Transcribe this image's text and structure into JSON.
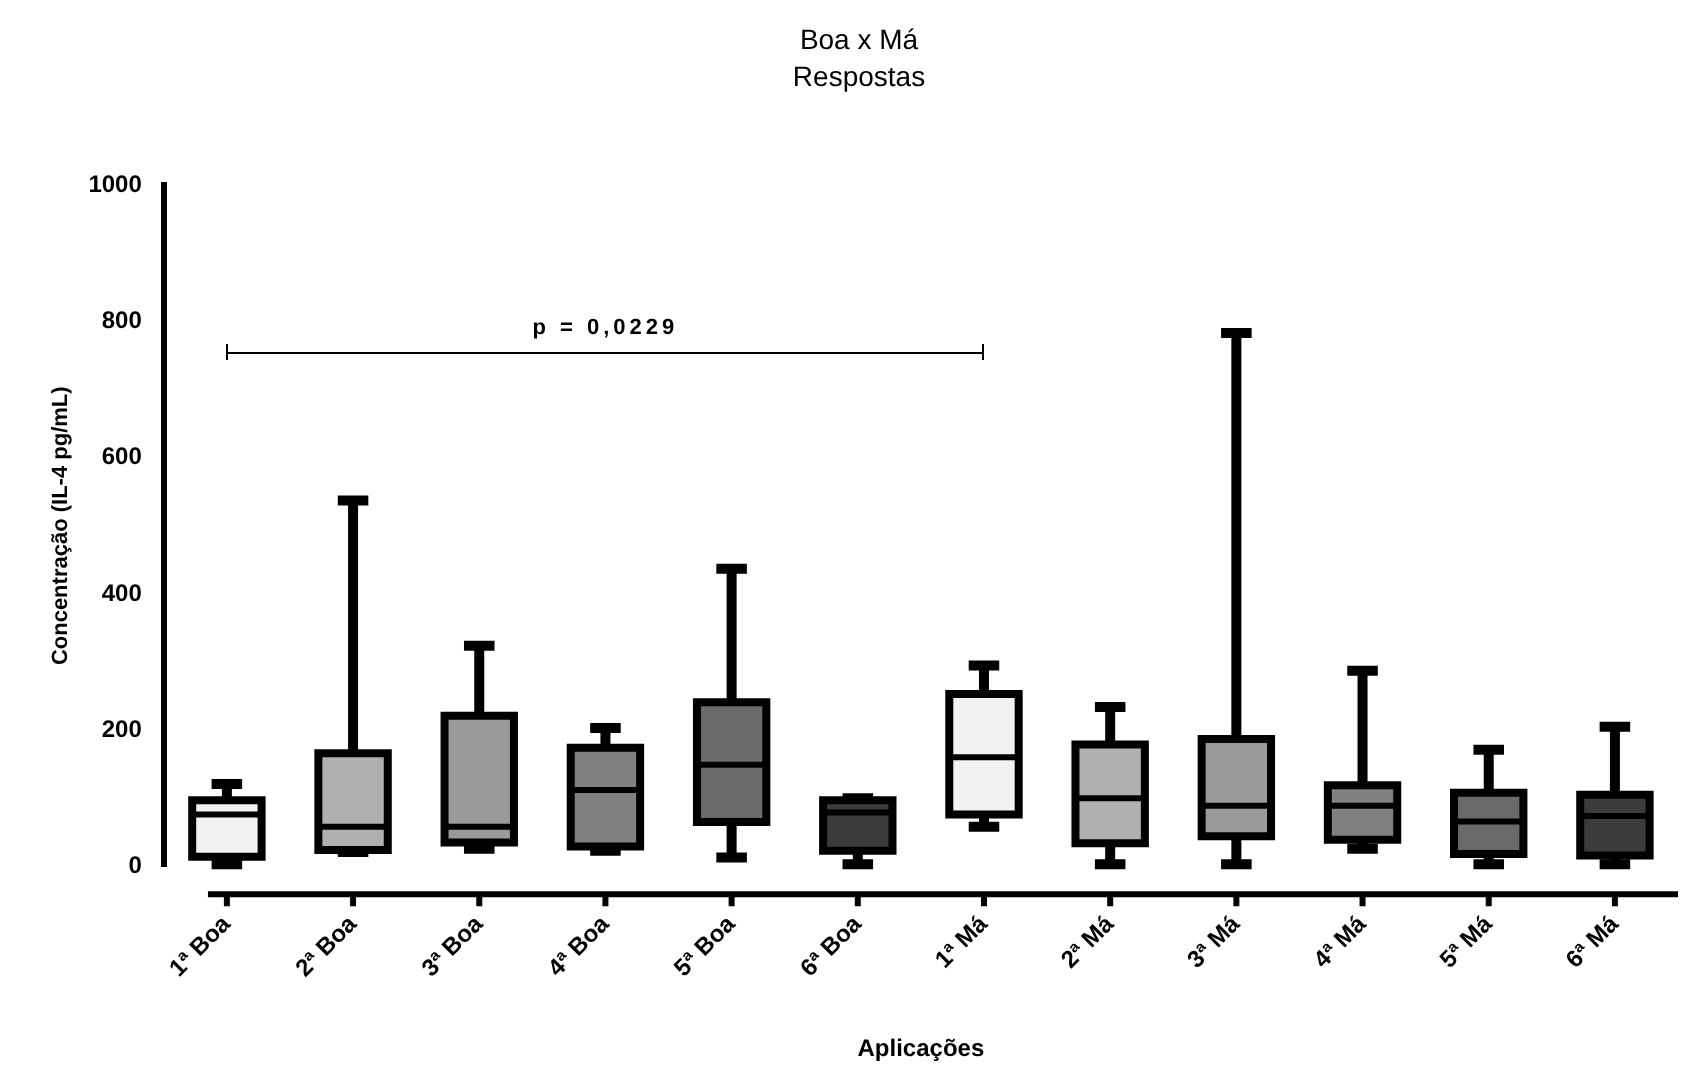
{
  "chart_data": {
    "type": "box",
    "title": "Boa x Má",
    "subtitle": "Respostas",
    "xlabel": "Aplicações",
    "ylabel": "Concentração (IL-4 pg/mL)",
    "categories": [
      "1ª Boa",
      "2ª Boa",
      "3ª Boa",
      "4ª Boa",
      "5ª Boa",
      "6ª Boa",
      "1ª Má",
      "2ª Má",
      "3ª Má",
      "4ª Má",
      "5ª Má",
      "6ª Má"
    ],
    "boxes": [
      {
        "low": 3,
        "q1": 14,
        "median": 76,
        "q3": 97,
        "high": 121
      },
      {
        "low": 21,
        "q1": 24,
        "median": 58,
        "q3": 166,
        "high": 537
      },
      {
        "low": 26,
        "q1": 35,
        "median": 58,
        "q3": 221,
        "high": 324
      },
      {
        "low": 23,
        "q1": 29,
        "median": 112,
        "q3": 174,
        "high": 203
      },
      {
        "low": 13,
        "q1": 65,
        "median": 149,
        "q3": 241,
        "high": 437
      },
      {
        "low": 3,
        "q1": 23,
        "median": 79,
        "q3": 97,
        "high": 100
      },
      {
        "low": 58,
        "q1": 76,
        "median": 160,
        "q3": 253,
        "high": 295
      },
      {
        "low": 3,
        "q1": 34,
        "median": 100,
        "q3": 179,
        "high": 234
      },
      {
        "low": 3,
        "q1": 44,
        "median": 89,
        "q3": 187,
        "high": 783
      },
      {
        "low": 26,
        "q1": 39,
        "median": 89,
        "q3": 119,
        "high": 287
      },
      {
        "low": 3,
        "q1": 18,
        "median": 66,
        "q3": 108,
        "high": 171
      },
      {
        "low": 3,
        "q1": 16,
        "median": 74,
        "q3": 105,
        "high": 205
      }
    ],
    "colors": [
      "#f2f2f2",
      "#b0b0b0",
      "#9a9a9a",
      "#808080",
      "#6a6a6a",
      "#3c3c3c",
      "#f2f2f2",
      "#b0b0b0",
      "#9a9a9a",
      "#808080",
      "#6a6a6a",
      "#3c3c3c"
    ],
    "ylim": [
      0,
      1000
    ],
    "yticks": [
      0,
      200,
      400,
      600,
      800,
      1000
    ],
    "grid": false,
    "legend": false,
    "annotations": [
      "p = 0,0229"
    ]
  }
}
